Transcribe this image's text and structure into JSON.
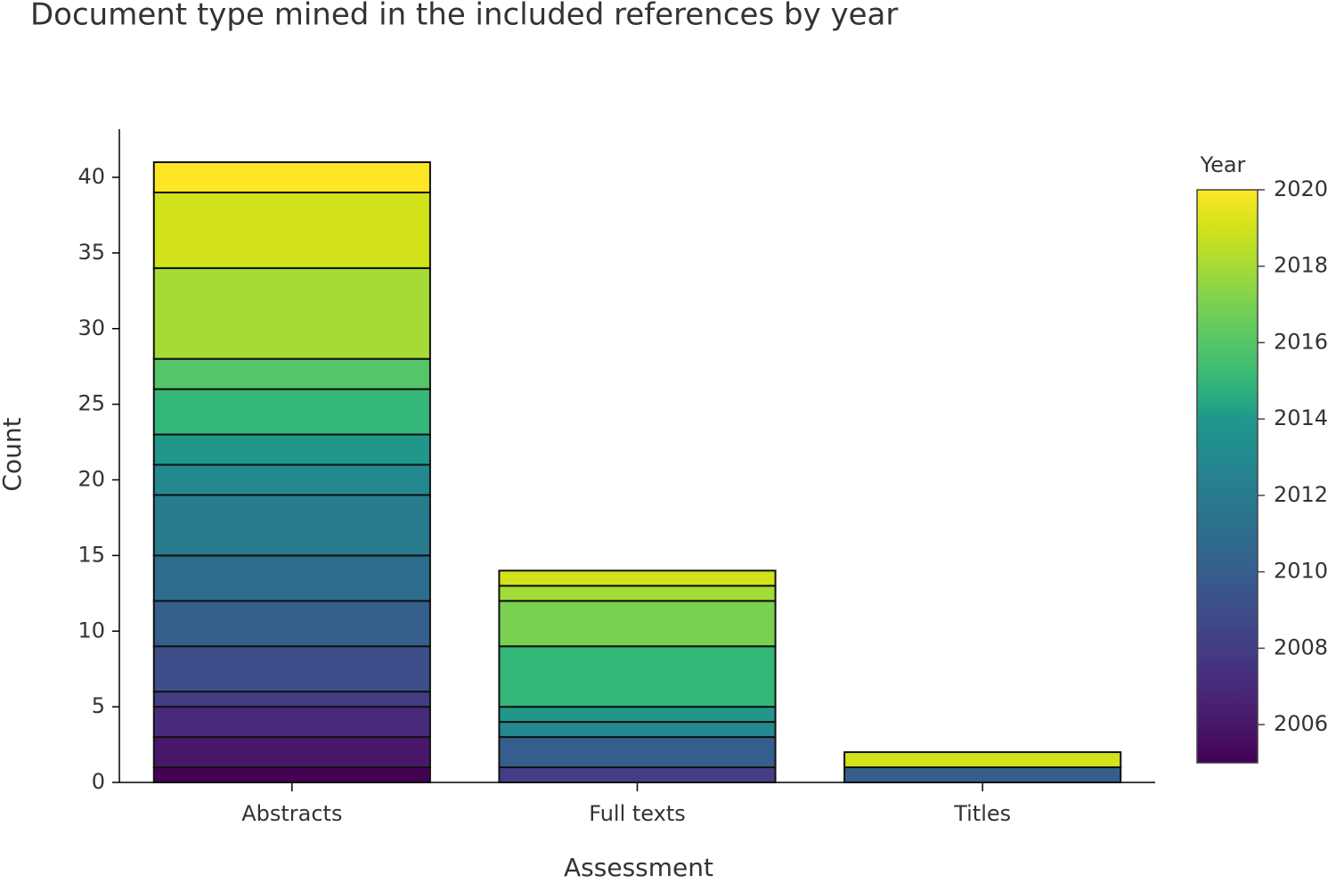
{
  "chart_data": {
    "type": "stacked_bar",
    "title": "Document type mined in the included references by year",
    "x_label": "Assessment",
    "y_label": "Count",
    "categories": [
      "Abstracts",
      "Full texts",
      "Titles"
    ],
    "ylim": [
      0,
      43
    ],
    "yticks": [
      0,
      5,
      10,
      15,
      20,
      25,
      30,
      35,
      40
    ],
    "series": [
      {
        "year": 2005,
        "color": "#440154",
        "values": [
          1,
          null,
          null
        ]
      },
      {
        "year": 2006,
        "color": "#481769",
        "values": [
          2,
          null,
          null
        ]
      },
      {
        "year": 2007,
        "color": "#472a7a",
        "values": [
          2,
          null,
          null
        ]
      },
      {
        "year": 2008,
        "color": "#433d84",
        "values": [
          1,
          1,
          null
        ]
      },
      {
        "year": 2009,
        "color": "#3d4e8a",
        "values": [
          3,
          null,
          null
        ]
      },
      {
        "year": 2010,
        "color": "#355e8d",
        "values": [
          3,
          2,
          1
        ]
      },
      {
        "year": 2011,
        "color": "#2e6d8e",
        "values": [
          3,
          null,
          null
        ]
      },
      {
        "year": 2012,
        "color": "#297b8e",
        "values": [
          4,
          null,
          null
        ]
      },
      {
        "year": 2013,
        "color": "#23898e",
        "values": [
          2,
          1,
          null
        ]
      },
      {
        "year": 2014,
        "color": "#1f988b",
        "values": [
          2,
          1,
          null
        ]
      },
      {
        "year": 2015,
        "color": "#35b779",
        "values": [
          3,
          4,
          null
        ]
      },
      {
        "year": 2016,
        "color": "#54c568",
        "values": [
          2,
          null,
          null
        ]
      },
      {
        "year": 2017,
        "color": "#7ad151",
        "values": [
          null,
          3,
          null
        ]
      },
      {
        "year": 2018,
        "color": "#a5db36",
        "values": [
          6,
          1,
          null
        ]
      },
      {
        "year": 2019,
        "color": "#d2e21b",
        "values": [
          5,
          1,
          1
        ]
      },
      {
        "year": 2020,
        "color": "#fde725",
        "values": [
          2,
          null,
          null
        ]
      }
    ],
    "colorbar": {
      "title": "Year",
      "lim": [
        2005,
        2020
      ],
      "ticks": [
        2006,
        2008,
        2010,
        2012,
        2014,
        2016,
        2018,
        2020
      ]
    }
  }
}
